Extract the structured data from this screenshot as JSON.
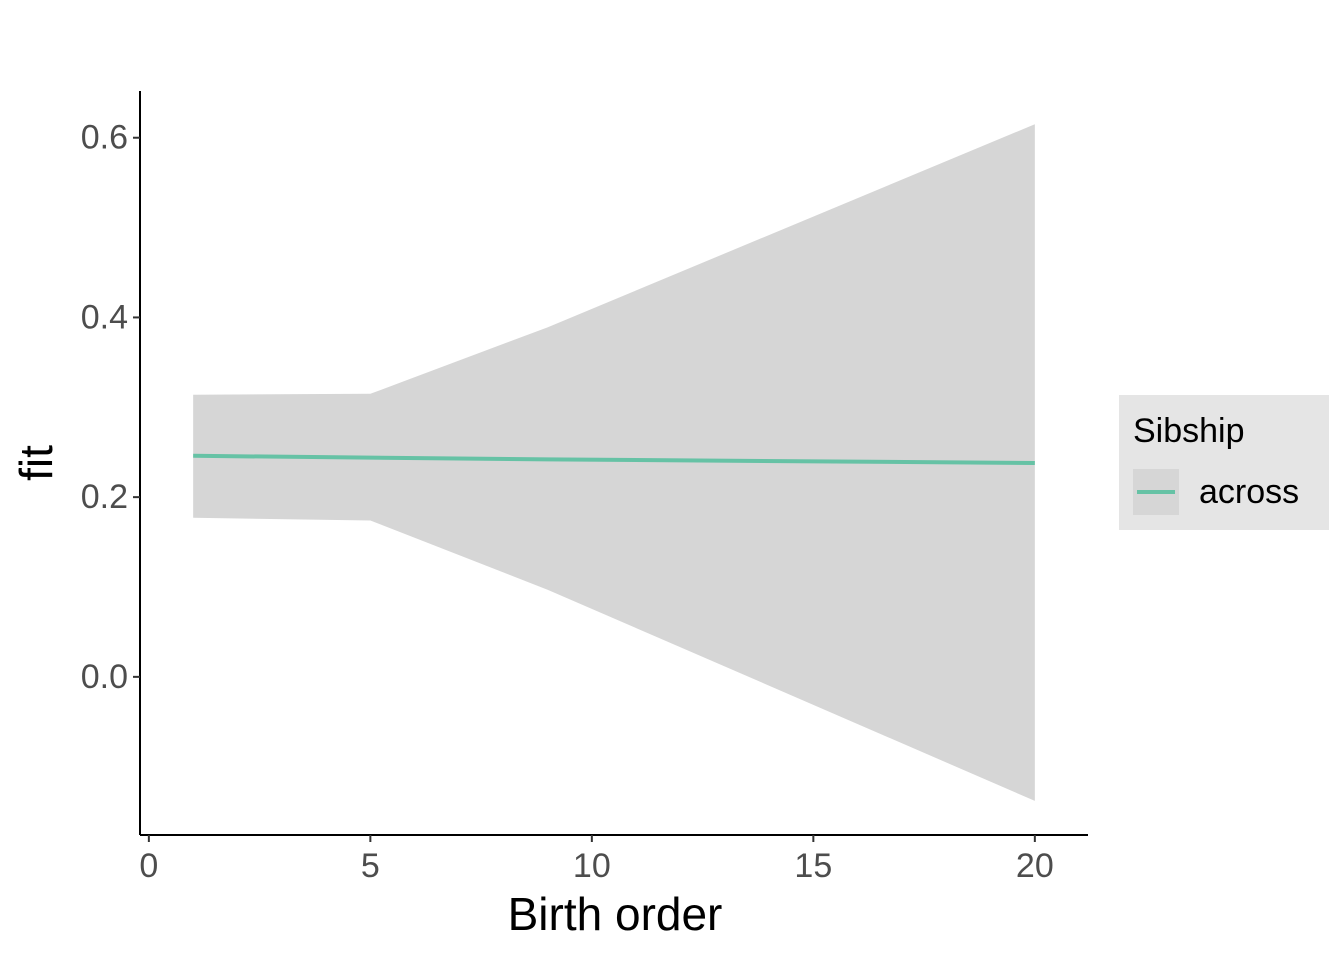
{
  "chart_data": {
    "type": "line",
    "xlabel": "Birth order",
    "ylabel": "fit",
    "x": [
      1,
      5,
      9,
      20
    ],
    "series": [
      {
        "name": "across",
        "color": "#66c2a5",
        "values": [
          0.246,
          0.244,
          0.242,
          0.238
        ],
        "lower": [
          0.177,
          0.174,
          0.097,
          -0.138
        ],
        "upper": [
          0.314,
          0.315,
          0.389,
          0.615
        ]
      }
    ],
    "ribbon_color": "#d6d6d6",
    "legend_title": "Sibship",
    "legend": "right",
    "xlim": [
      -0.2,
      21.2
    ],
    "xticks": [
      0,
      5,
      10,
      15,
      20
    ],
    "ylim": [
      -0.176,
      0.652
    ],
    "yticks": [
      {
        "value": 0,
        "label": "0.0"
      },
      0.2,
      0.4,
      0.6
    ]
  }
}
